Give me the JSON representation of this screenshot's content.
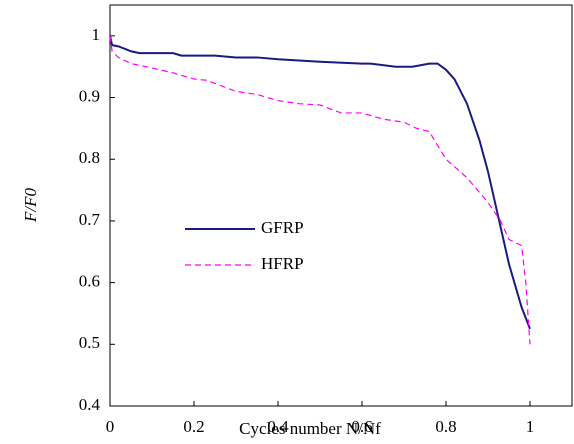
{
  "chart_data": {
    "type": "line",
    "xlabel": "Cycles number N/Nf",
    "ylabel": "F/F0",
    "xlim": [
      0,
      1.1
    ],
    "xticks": [
      0,
      0.2,
      0.4,
      0.6,
      0.8,
      1
    ],
    "ylim": [
      0.4,
      1.05
    ],
    "yticks": [
      0.4,
      0.5,
      0.6,
      0.7,
      0.8,
      0.9,
      1
    ],
    "legend": "center left",
    "series": [
      {
        "name": "GFRP",
        "color": "#1a1a80",
        "linestyle": "solid",
        "x": [
          0,
          0.005,
          0.02,
          0.05,
          0.07,
          0.15,
          0.17,
          0.25,
          0.3,
          0.35,
          0.4,
          0.5,
          0.6,
          0.62,
          0.68,
          0.72,
          0.76,
          0.78,
          0.8,
          0.82,
          0.85,
          0.88,
          0.9,
          0.92,
          0.95,
          0.98,
          1.0
        ],
        "values": [
          1.0,
          0.985,
          0.983,
          0.975,
          0.972,
          0.972,
          0.968,
          0.968,
          0.965,
          0.965,
          0.962,
          0.958,
          0.955,
          0.955,
          0.95,
          0.95,
          0.955,
          0.955,
          0.945,
          0.93,
          0.89,
          0.83,
          0.78,
          0.72,
          0.63,
          0.56,
          0.525
        ]
      },
      {
        "name": "HFRP",
        "color": "#ff00ff",
        "linestyle": "dashed",
        "x": [
          0,
          0.005,
          0.02,
          0.05,
          0.1,
          0.15,
          0.2,
          0.23,
          0.3,
          0.35,
          0.4,
          0.45,
          0.5,
          0.55,
          0.6,
          0.65,
          0.7,
          0.73,
          0.76,
          0.8,
          0.85,
          0.9,
          0.93,
          0.95,
          0.98,
          0.99,
          1.0
        ],
        "values": [
          1.0,
          0.975,
          0.965,
          0.955,
          0.948,
          0.94,
          0.93,
          0.928,
          0.91,
          0.905,
          0.895,
          0.89,
          0.888,
          0.875,
          0.875,
          0.865,
          0.86,
          0.85,
          0.845,
          0.8,
          0.77,
          0.73,
          0.7,
          0.67,
          0.66,
          0.6,
          0.5
        ]
      }
    ]
  }
}
